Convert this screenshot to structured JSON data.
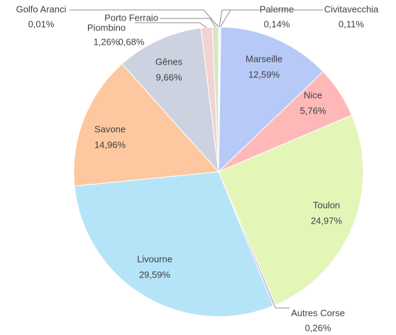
{
  "chart_data": {
    "type": "pie",
    "categories": [
      "Palerme",
      "Civitavecchia",
      "Marseille",
      "Nice",
      "Toulon",
      "Autres Corse",
      "Livourne",
      "Savone",
      "Gênes",
      "Piombino",
      "Porto Ferraio",
      "Golfo Aranci"
    ],
    "values": [
      0.14,
      0.11,
      12.59,
      5.76,
      24.97,
      0.26,
      29.59,
      14.96,
      9.66,
      1.26,
      0.68,
      0.01
    ],
    "value_labels": [
      "0,14%",
      "0,11%",
      "12,59%",
      "5,76%",
      "24,97%",
      "0,26%",
      "29,59%",
      "14,96%",
      "9,66%",
      "1,26%",
      "0,68%",
      "0,01%"
    ],
    "colors": [
      "#d8e3c4",
      "#e0e8d0",
      "#b7c9f7",
      "#ffb8b8",
      "#e3f6b8",
      "#c8b6ea",
      "#b5e4f8",
      "#fdc8a0",
      "#cdd2e0",
      "#f4d2d2",
      "#d6e6c6",
      "#e8e8e8"
    ]
  }
}
